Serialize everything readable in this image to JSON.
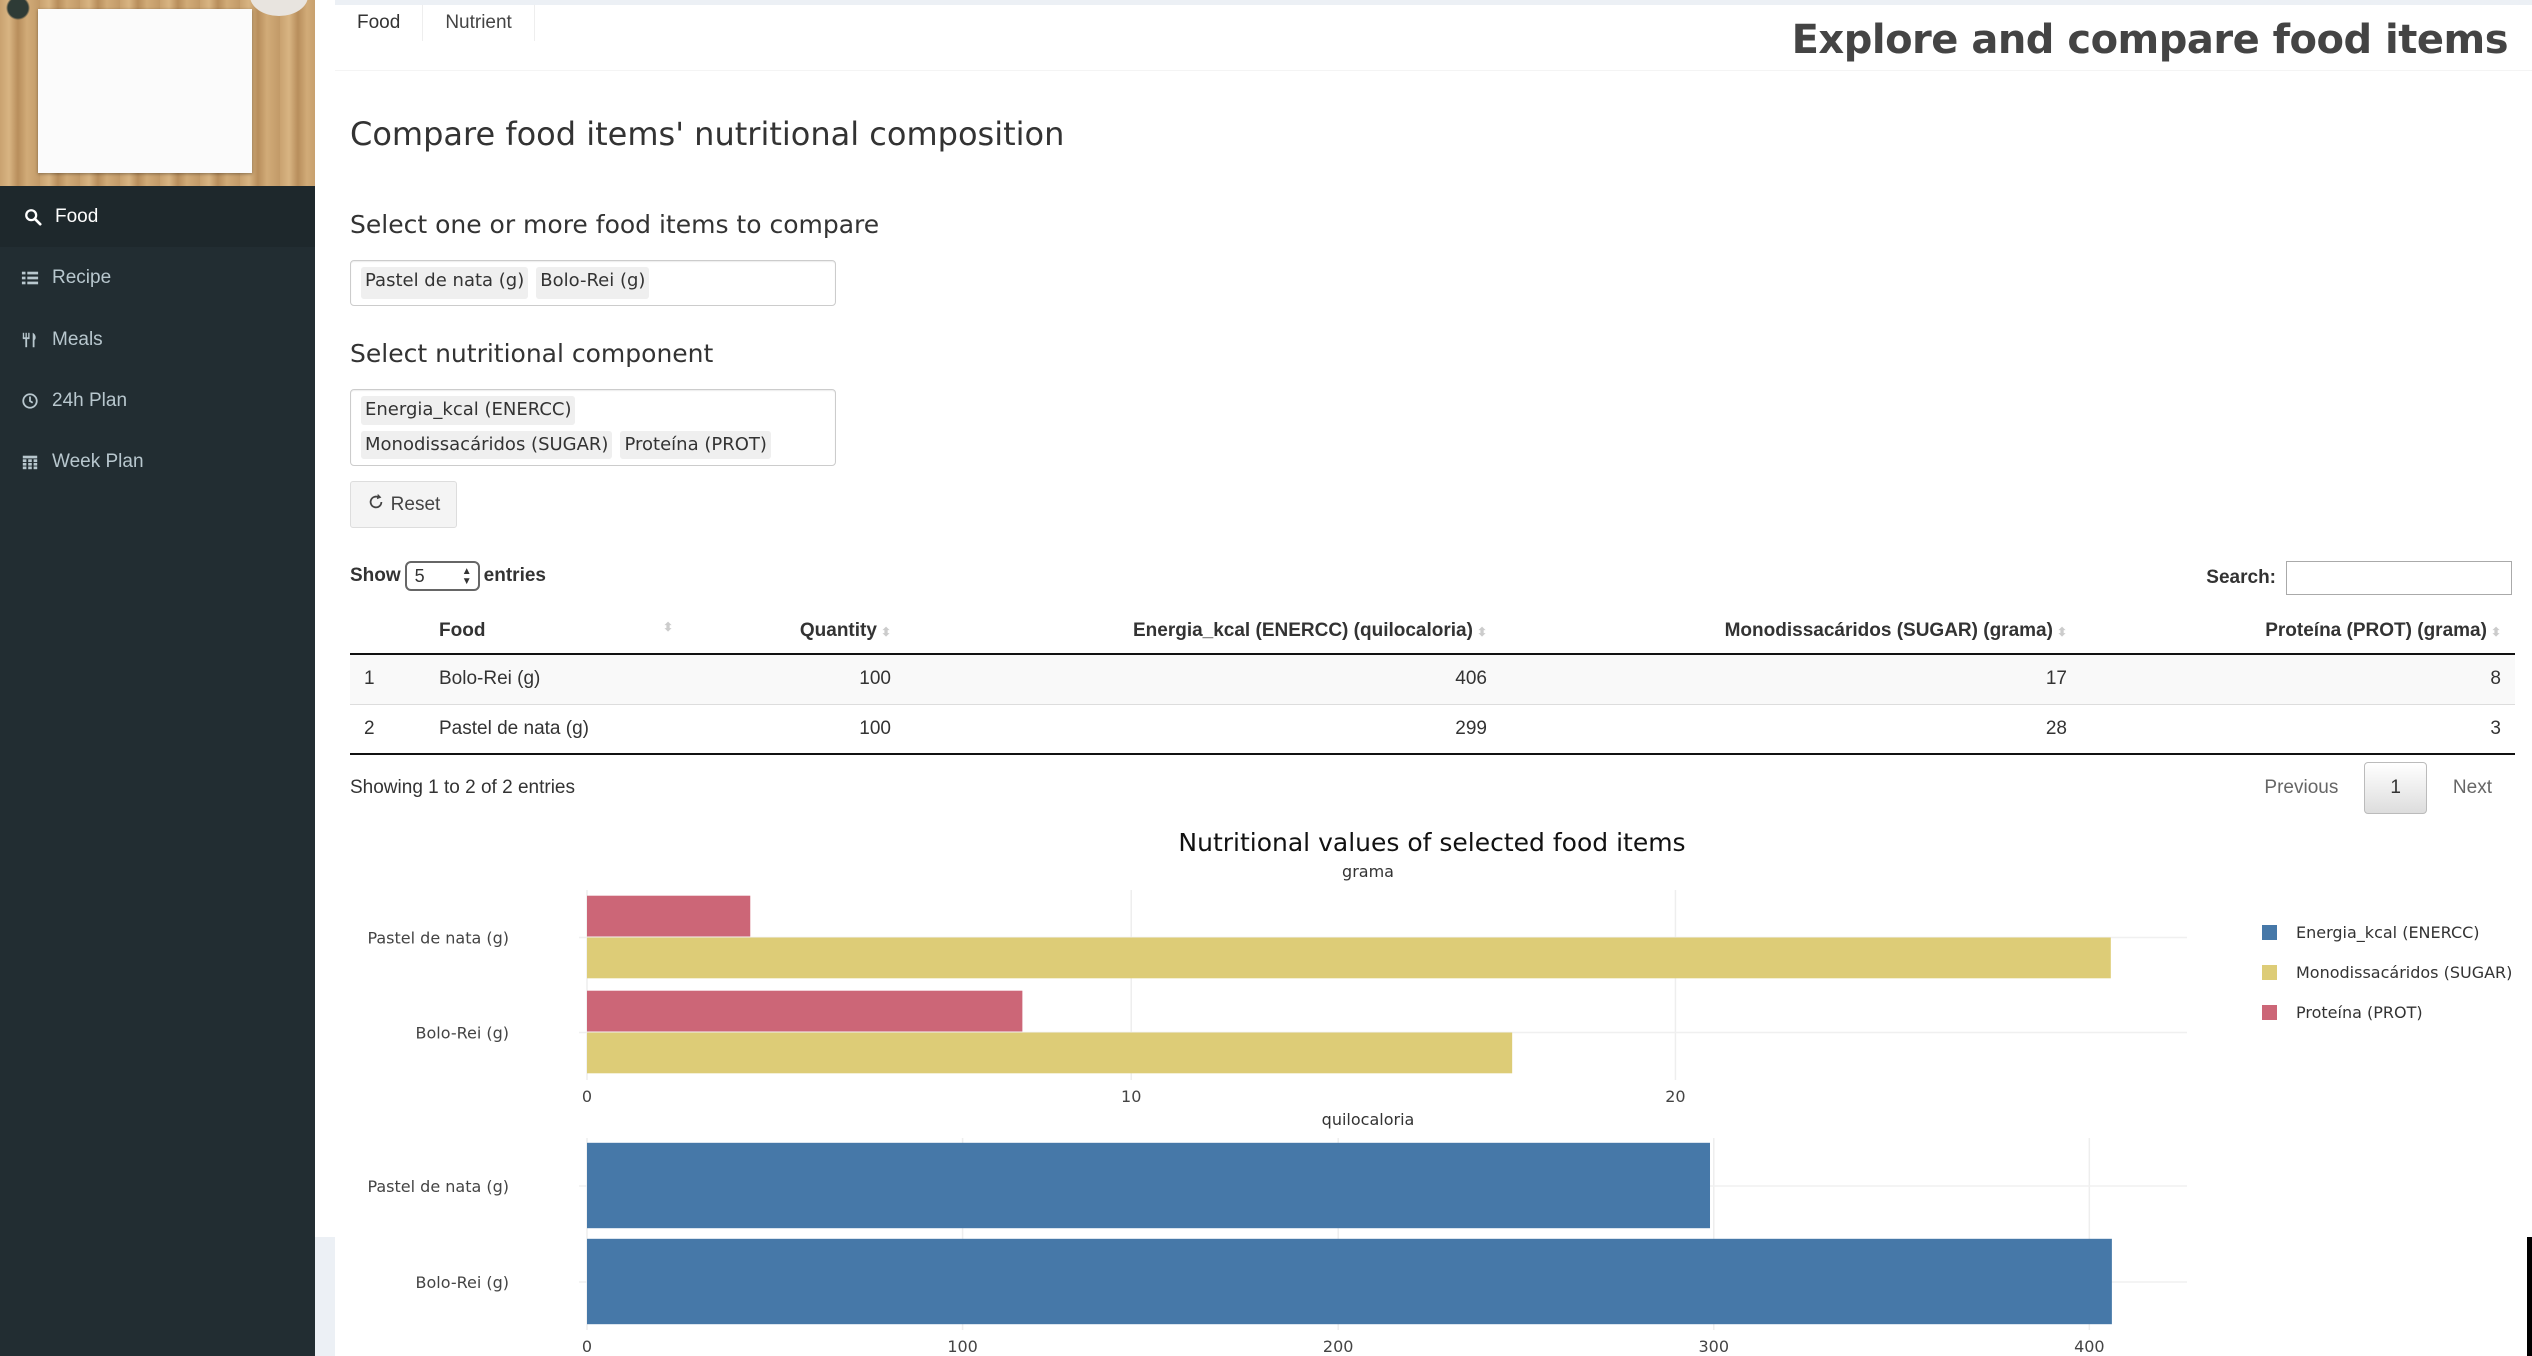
{
  "sidebar": {
    "items": [
      {
        "label": "Food",
        "icon": "search-icon",
        "active": true
      },
      {
        "label": "Recipe",
        "icon": "list-icon",
        "active": false
      },
      {
        "label": "Meals",
        "icon": "cutlery-icon",
        "active": false
      },
      {
        "label": "24h Plan",
        "icon": "clock-icon",
        "active": false
      },
      {
        "label": "Week Plan",
        "icon": "calendar-icon",
        "active": false
      }
    ]
  },
  "header": {
    "tabs": [
      {
        "label": "Food"
      },
      {
        "label": "Nutrient"
      }
    ],
    "title": "Explore and compare food items"
  },
  "main": {
    "section_title": "Compare food items' nutritional composition",
    "food_select": {
      "label": "Select one or more food items to compare",
      "selected": [
        "Pastel de nata (g)",
        "Bolo-Rei (g)"
      ]
    },
    "component_select": {
      "label": "Select nutritional component",
      "selected": [
        "Energia_kcal (ENERCC)",
        "Monodissacáridos (SUGAR)",
        "Proteína (PROT)"
      ]
    },
    "reset_label": "Reset"
  },
  "table": {
    "show_label": "Show",
    "entries_label": "entries",
    "page_length": "5",
    "search_label": "Search:",
    "columns": [
      "Food",
      "Quantity",
      "Energia_kcal (ENERCC) (quilocaloria)",
      "Monodissacáridos (SUGAR) (grama)",
      "Proteína (PROT) (grama)"
    ],
    "rows": [
      [
        "1",
        "Bolo-Rei (g)",
        "100",
        "406",
        "17",
        "8"
      ],
      [
        "2",
        "Pastel de nata (g)",
        "100",
        "299",
        "28",
        "3"
      ]
    ],
    "info": "Showing 1 to 2 of 2 entries",
    "pager": {
      "previous": "Previous",
      "current": "1",
      "next": "Next"
    }
  },
  "colors": {
    "energy": "#4678a8",
    "sugar": "#ddcc77",
    "protein": "#cc6677"
  },
  "chart_data": {
    "type": "bar",
    "orientation": "horizontal",
    "title": "Nutritional values of selected food items",
    "legend": [
      "Energia_kcal (ENERCC)",
      "Monodissacáridos (SUGAR)",
      "Proteína (PROT)"
    ],
    "legend_position": "right",
    "panels": [
      {
        "subtitle": "grama",
        "categories": [
          "Pastel de nata (g)",
          "Bolo-Rei (g)"
        ],
        "series": [
          {
            "name": "Proteína (PROT)",
            "values": [
              3,
              8
            ]
          },
          {
            "name": "Monodissacáridos (SUGAR)",
            "values": [
              28,
              17
            ]
          }
        ],
        "xlim": [
          0,
          29.4
        ],
        "ticks": [
          0,
          10,
          20
        ]
      },
      {
        "subtitle": "quilocaloria",
        "categories": [
          "Pastel de nata (g)",
          "Bolo-Rei (g)"
        ],
        "series": [
          {
            "name": "Energia_kcal (ENERCC)",
            "values": [
              299,
              406
            ]
          }
        ],
        "xlim": [
          0,
          426
        ],
        "ticks": [
          0,
          100,
          200,
          300,
          400
        ]
      }
    ]
  }
}
